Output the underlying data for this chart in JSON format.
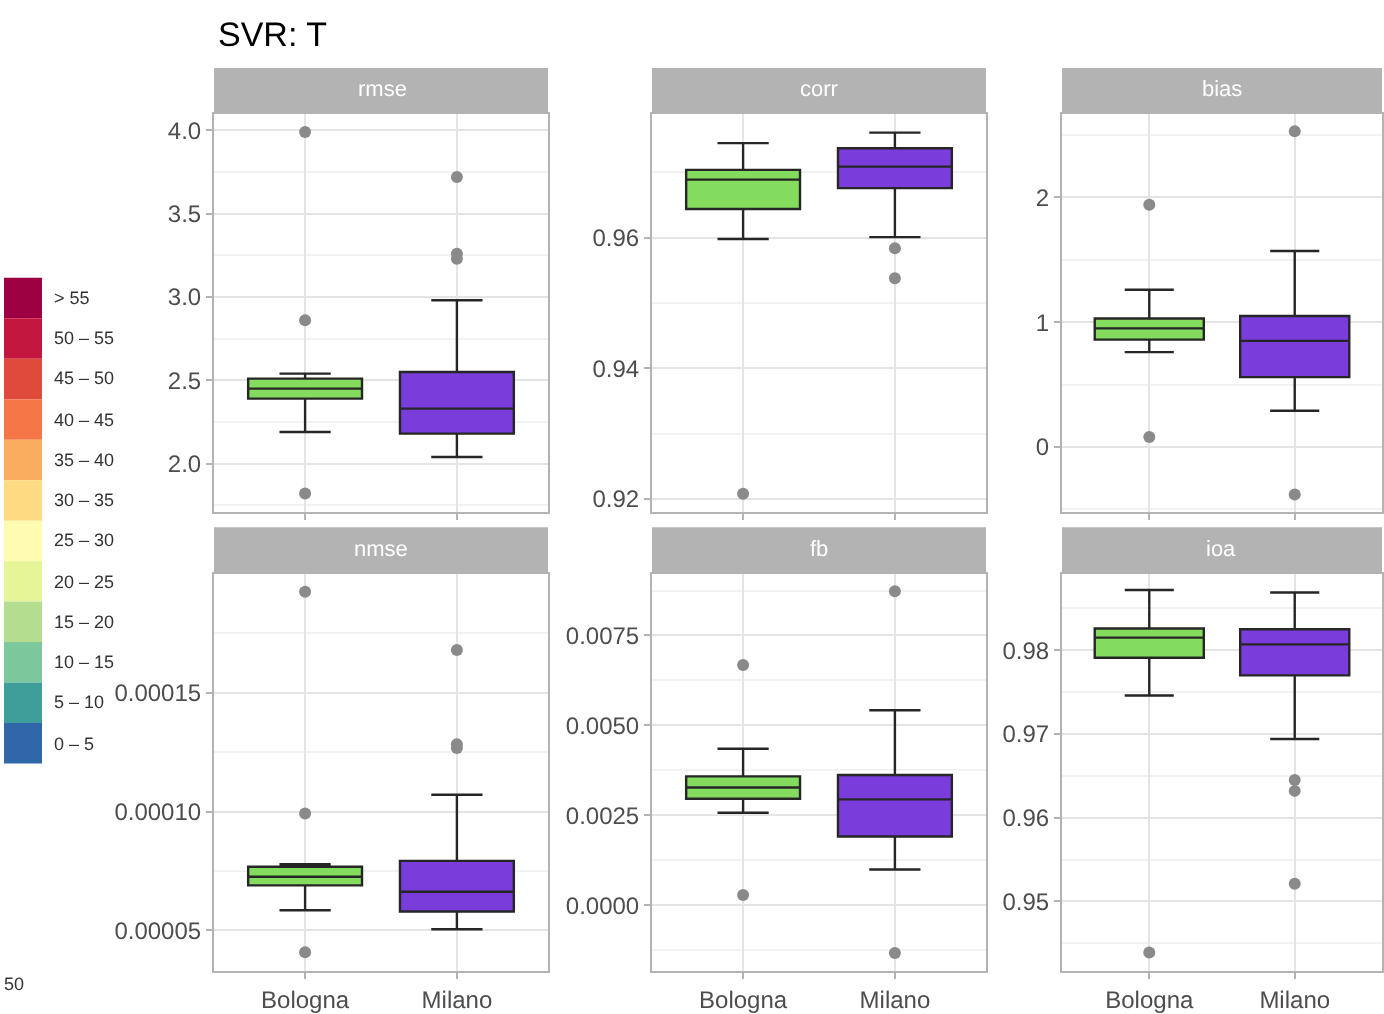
{
  "chart_data": [
    {
      "type": "box",
      "title": "SVR: T",
      "subtitle": "rmse",
      "categories": [
        "Bologna",
        "Milano"
      ],
      "colors": [
        "#84dc5e",
        "#7a3ddb"
      ],
      "boxes": [
        {
          "low": 2.19,
          "q1": 2.39,
          "median": 2.45,
          "q3": 2.51,
          "high": 2.54,
          "outliers": [
            3.99,
            2.86,
            1.82
          ]
        },
        {
          "low": 2.04,
          "q1": 2.18,
          "median": 2.33,
          "q3": 2.55,
          "high": 2.98,
          "outliers": [
            3.72,
            3.26,
            3.23
          ]
        }
      ],
      "ylim": [
        1.71,
        4.1
      ],
      "yticks": [
        {
          "value": 2,
          "label": "2.0"
        },
        2.5,
        {
          "value": 3,
          "label": "3.0"
        },
        3.5,
        {
          "value": 4,
          "label": "4.0"
        }
      ],
      "grid": true,
      "tick_labels": "y"
    },
    {
      "type": "box",
      "subtitle": "corr",
      "categories": [
        "Bologna",
        "Milano"
      ],
      "colors": [
        "#84dc5e",
        "#7a3ddb"
      ],
      "boxes": [
        {
          "low": 0.9598,
          "q1": 0.9644,
          "median": 0.9689,
          "q3": 0.9704,
          "high": 0.9745,
          "outliers": [
            0.9208
          ]
        },
        {
          "low": 0.9601,
          "q1": 0.9676,
          "median": 0.9709,
          "q3": 0.9737,
          "high": 0.9761,
          "outliers": [
            0.9584,
            0.9538
          ]
        }
      ],
      "ylim": [
        0.918,
        0.979
      ],
      "yticks": [
        0.92,
        0.94,
        0.96
      ],
      "grid": true,
      "tick_labels": "y"
    },
    {
      "type": "box",
      "subtitle": "bias",
      "categories": [
        "Bologna",
        "Milano"
      ],
      "colors": [
        "#84dc5e",
        "#7a3ddb"
      ],
      "boxes": [
        {
          "low": 0.76,
          "q1": 0.86,
          "median": 0.95,
          "q3": 1.03,
          "high": 1.26,
          "outliers": [
            1.94,
            0.08
          ]
        },
        {
          "low": 0.29,
          "q1": 0.56,
          "median": 0.85,
          "q3": 1.05,
          "high": 1.57,
          "outliers": [
            2.53,
            -0.38
          ]
        }
      ],
      "ylim": [
        -0.52,
        2.67
      ],
      "yticks": [
        0,
        1,
        2
      ],
      "grid": true,
      "tick_labels": "y"
    },
    {
      "type": "box",
      "subtitle": "nmse",
      "categories": [
        "Bologna",
        "Milano"
      ],
      "colors": [
        "#84dc5e",
        "#7a3ddb"
      ],
      "boxes": [
        {
          "low": 5.85e-05,
          "q1": 6.9e-05,
          "median": 7.26e-05,
          "q3": 7.68e-05,
          "high": 7.79e-05,
          "outliers": [
            0.0001925,
            9.92e-05,
            4.08e-05
          ]
        },
        {
          "low": 5.05e-05,
          "q1": 5.8e-05,
          "median": 6.63e-05,
          "q3": 7.93e-05,
          "high": 0.0001071,
          "outliers": [
            0.000168,
            0.0001284,
            0.0001268
          ]
        }
      ],
      "ylim": [
        3.3e-05,
        0.0002
      ],
      "yticks": [
        {
          "value": 5e-05,
          "label": "0.00005"
        },
        {
          "value": 0.0001,
          "label": "0.00010"
        },
        {
          "value": 0.00015,
          "label": "0.00015"
        }
      ],
      "grid": true
    },
    {
      "type": "box",
      "subtitle": "fb",
      "categories": [
        "Bologna",
        "Milano"
      ],
      "colors": [
        "#84dc5e",
        "#7a3ddb"
      ],
      "boxes": [
        {
          "low": 0.00257,
          "q1": 0.00296,
          "median": 0.00327,
          "q3": 0.00358,
          "high": 0.00435,
          "outliers": [
            0.00668,
            0.00028
          ]
        },
        {
          "low": 0.00099,
          "q1": 0.00191,
          "median": 0.00294,
          "q3": 0.00362,
          "high": 0.00542,
          "outliers": [
            0.00873,
            -0.00133
          ]
        }
      ],
      "ylim": [
        -0.00183,
        0.00921
      ],
      "yticks": [
        {
          "value": 0,
          "label": "0.0000"
        },
        0.0025,
        {
          "value": 0.005,
          "label": "0.0050"
        },
        0.0075
      ],
      "grid": true
    },
    {
      "type": "box",
      "subtitle": "ioa",
      "categories": [
        "Bologna",
        "Milano"
      ],
      "colors": [
        "#84dc5e",
        "#7a3ddb"
      ],
      "boxes": [
        {
          "low": 0.9746,
          "q1": 0.9791,
          "median": 0.9815,
          "q3": 0.9826,
          "high": 0.9872,
          "outliers": [
            0.9439
          ]
        },
        {
          "low": 0.9694,
          "q1": 0.977,
          "median": 0.9807,
          "q3": 0.9825,
          "high": 0.9869,
          "outliers": [
            0.9645,
            0.9632,
            0.9521
          ]
        }
      ],
      "ylim": [
        0.9417,
        0.9891
      ],
      "yticks": [
        0.95,
        0.96,
        0.97,
        0.98
      ],
      "grid": true
    },
    {
      "type": "other",
      "categories": [
        "> 55",
        "50 – 55",
        "45 – 50",
        "40 – 45",
        "35 – 40",
        "30 – 35",
        "25 – 30",
        "20 – 25",
        "15 – 20",
        "10 – 15",
        "5 – 10",
        "0 – 5"
      ],
      "colors": [
        "#9e0142",
        "#c4173f",
        "#e04a3a",
        "#f47646",
        "#fbad5f",
        "#fedb82",
        "#fffbb0",
        "#e6f598",
        "#b5dd8f",
        "#7cc79c",
        "#3f9e9a",
        "#2f67a9"
      ],
      "annotations": [
        "50"
      ]
    }
  ]
}
